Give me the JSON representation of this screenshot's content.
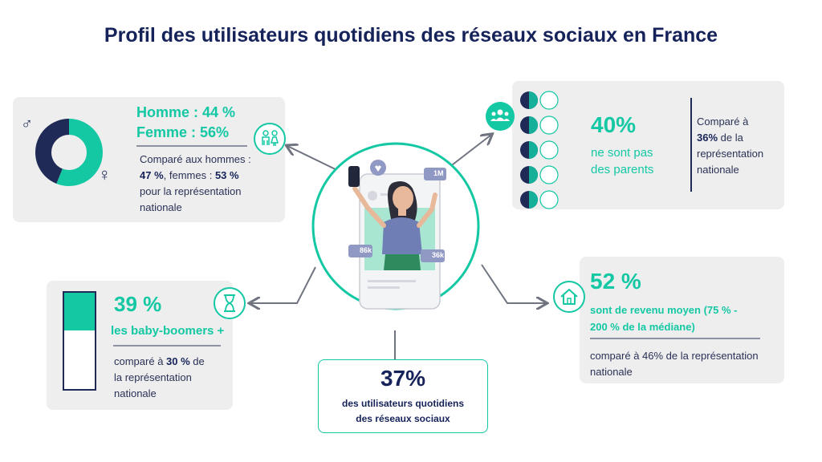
{
  "title": "Profil des utilisateurs quotidiens des réseaux sociaux en France",
  "colors": {
    "accent": "#14c8a4",
    "navy": "#1f2a56",
    "card": "#eeeeef"
  },
  "gender": {
    "line1": "Homme : 44 %",
    "line2": "Femme : 56%",
    "comp_a": "Comparé aux hommes :",
    "comp_b_pct1": "47 %",
    "comp_b_mid": ", femmes : ",
    "comp_b_pct2": "53 %",
    "comp_c": "pour la représentation",
    "comp_d": "nationale",
    "male_symbol": "♂",
    "female_symbol": "♀",
    "icon": "couple-icon",
    "chart": {
      "men_pct": 44,
      "women_pct": 56
    }
  },
  "parents": {
    "pct": "40%",
    "label_a": "ne sont pas",
    "label_b": "des parents",
    "comp_a": "Comparé à",
    "comp_b_pct": "36%",
    "comp_b_rest": " de la",
    "comp_c": "représentation",
    "comp_d": "nationale",
    "icon": "group-icon"
  },
  "boomers": {
    "pct": "39 %",
    "label": "les baby-boomers +",
    "comp_a_pre": "comparé à ",
    "comp_a_pct": "30 %",
    "comp_a_rest": " de",
    "comp_b": "la représentation",
    "comp_c": "nationale",
    "fill_pct": 39,
    "icon": "hourglass-icon"
  },
  "income": {
    "pct": "52 %",
    "label_a": "sont de revenu moyen (75 % -",
    "label_b": "200 % de la médiane)",
    "comp_a": "comparé à 46% de la représentation",
    "comp_b": "nationale",
    "icon": "house-icon"
  },
  "center": {
    "pct": "37%",
    "label_a": "des utilisateurs quotidiens",
    "label_b": "des réseaux sociaux"
  },
  "phone": {
    "likes": "1M",
    "comments": "86k",
    "shares": "36k"
  }
}
